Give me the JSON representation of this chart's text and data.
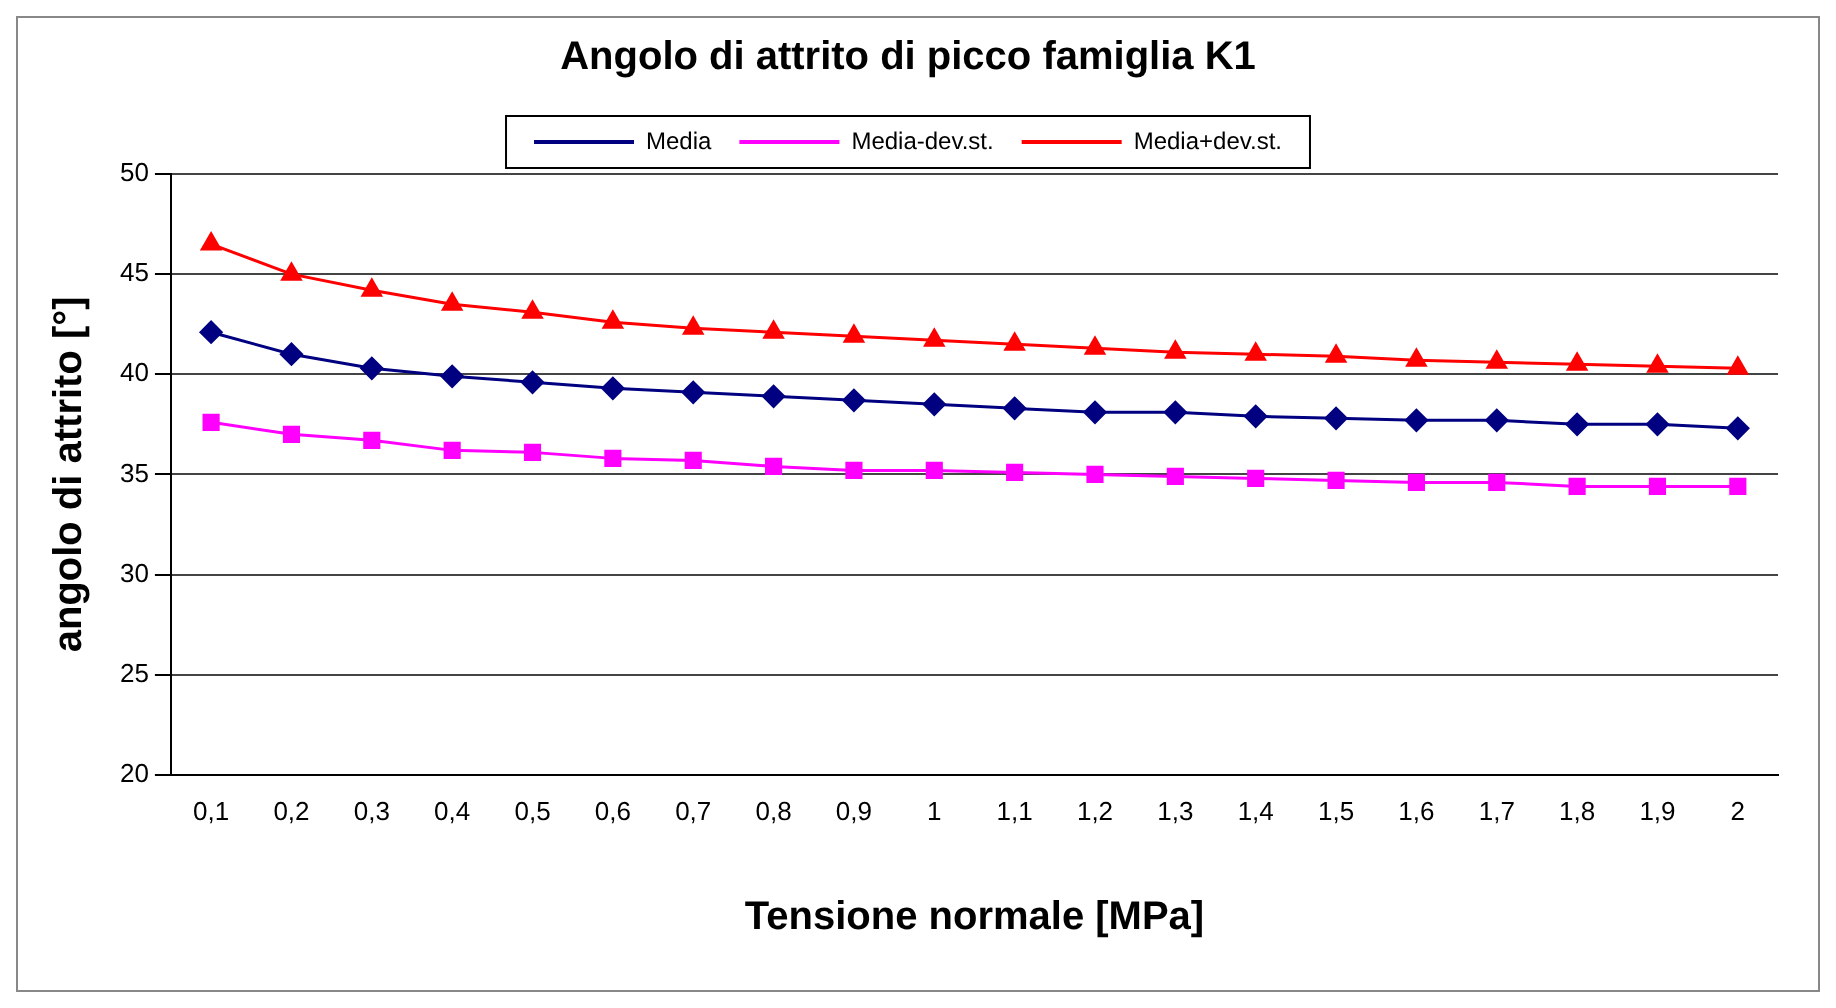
{
  "chart_data": {
    "type": "line",
    "title": "Angolo di attrito di picco famiglia K1",
    "xlabel": "Tensione normale [MPa]",
    "ylabel": "angolo di attrito [°]",
    "categories": [
      "0,1",
      "0,2",
      "0,3",
      "0,4",
      "0,5",
      "0,6",
      "0,7",
      "0,8",
      "0,9",
      "1",
      "1,1",
      "1,2",
      "1,3",
      "1,4",
      "1,5",
      "1,6",
      "1,7",
      "1,8",
      "1,9",
      "2"
    ],
    "series": [
      {
        "name": "Media",
        "color": "#000080",
        "marker": "diamond",
        "values": [
          42.1,
          41.0,
          40.3,
          39.9,
          39.6,
          39.3,
          39.1,
          38.9,
          38.7,
          38.5,
          38.3,
          38.1,
          38.1,
          37.9,
          37.8,
          37.7,
          37.7,
          37.5,
          37.5,
          37.3
        ]
      },
      {
        "name": "Media-dev.st.",
        "color": "#ff00ff",
        "marker": "square",
        "values": [
          37.6,
          37.0,
          36.7,
          36.2,
          36.1,
          35.8,
          35.7,
          35.4,
          35.2,
          35.2,
          35.1,
          35.0,
          34.9,
          34.8,
          34.7,
          34.6,
          34.6,
          34.4,
          34.4,
          34.4
        ]
      },
      {
        "name": "Media+dev.st.",
        "color": "#ff0000",
        "marker": "triangle",
        "values": [
          46.5,
          45.0,
          44.2,
          43.5,
          43.1,
          42.6,
          42.3,
          42.1,
          41.9,
          41.7,
          41.5,
          41.3,
          41.1,
          41.0,
          40.9,
          40.7,
          40.6,
          40.5,
          40.4,
          40.3
        ]
      }
    ],
    "ylim": [
      20,
      50
    ],
    "yticks": [
      20,
      25,
      30,
      35,
      40,
      45,
      50
    ],
    "grid": "y",
    "legend": "top",
    "line_style": "solid"
  }
}
